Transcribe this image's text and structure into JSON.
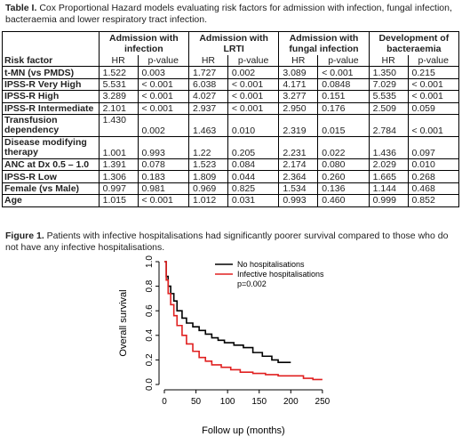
{
  "table_caption": {
    "label": "Table I.",
    "text": " Cox Proportional Hazard models evaluating risk factors for admission with infection, fungal infection, bacteraemia and lower respiratory tract infection."
  },
  "table": {
    "groups": [
      "Admission with infection",
      "Admission with LRTI",
      "Admission with fungal infection",
      "Development of bacteraemia"
    ],
    "risk_factor_header": "Risk factor",
    "hr_label": "HR",
    "p_label": "p-value",
    "rows": [
      {
        "factor": "t-MN (vs PMDS)",
        "v": [
          "1.522",
          "0.003",
          "1.727",
          "0.002",
          "3.089",
          "< 0.001",
          "1.350",
          "0.215"
        ]
      },
      {
        "factor": "IPSS-R Very High",
        "v": [
          "5.531",
          "< 0.001",
          "6.038",
          "< 0.001",
          "4.171",
          "0.0848",
          "7.029",
          "< 0.001"
        ]
      },
      {
        "factor": "IPSS-R High",
        "v": [
          "3.289",
          "< 0.001",
          "4.027",
          "< 0.001",
          "3.277",
          "0.151",
          "5.535",
          "< 0.001"
        ]
      },
      {
        "factor": "IPSS-R Intermediate",
        "v": [
          "2.101",
          "< 0.001",
          "2.937",
          "< 0.001",
          "2.950",
          "0.176",
          "2.509",
          "0.059"
        ]
      },
      {
        "factor": "Transfusion dependency",
        "v": [
          "1.430",
          "0.002",
          "1.463",
          "0.010",
          "2.319",
          "0.015",
          "2.784",
          "< 0.001"
        ]
      },
      {
        "factor": "Disease modifying therapy",
        "v": [
          "1.001",
          "0.993",
          "1.22",
          "0.205",
          "2.231",
          "0.022",
          "1.436",
          "0.097"
        ]
      },
      {
        "factor": "ANC at Dx 0.5 – 1.0",
        "v": [
          "1.391",
          "0.078",
          "1.523",
          "0.084",
          "2.174",
          "0.080",
          "2.029",
          "0.010"
        ]
      },
      {
        "factor": "IPSS-R Low",
        "v": [
          "1.306",
          "0.183",
          "1.809",
          "0.044",
          "2.364",
          "0.260",
          "1.665",
          "0.268"
        ]
      },
      {
        "factor": "Female (vs Male)",
        "v": [
          "0.997",
          "0.981",
          "0.969",
          "0.825",
          "1.534",
          "0.136",
          "1.144",
          "0.468"
        ]
      },
      {
        "factor": "Age",
        "v": [
          "1.015",
          "< 0.001",
          "1.012",
          "0.031",
          "0.993",
          "0.460",
          "0.999",
          "0.852"
        ]
      }
    ]
  },
  "figure_caption": {
    "label": "Figure 1.",
    "text": " Patients with infective hospitalisations had significantly poorer survival compared to those who do not have any infective hospitalisations."
  },
  "chart_data": {
    "type": "line",
    "xlabel": "Follow up (months)",
    "ylabel": "Overall survival",
    "xlim": [
      0,
      260
    ],
    "ylim": [
      0,
      1
    ],
    "xticks": [
      "0",
      "50",
      "100",
      "150",
      "200",
      "250"
    ],
    "yticks": [
      "0.0",
      "0.2",
      "0.4",
      "0.6",
      "0.8",
      "1.0"
    ],
    "annotation": "p=0.002",
    "legend_position": "top-right",
    "series": [
      {
        "name": "No hospitalisations",
        "color": "#000000",
        "x": [
          0,
          3,
          6,
          10,
          15,
          20,
          28,
          35,
          45,
          55,
          65,
          75,
          85,
          95,
          110,
          125,
          140,
          155,
          170,
          180,
          200
        ],
        "y": [
          1.0,
          0.88,
          0.8,
          0.74,
          0.68,
          0.6,
          0.54,
          0.5,
          0.47,
          0.44,
          0.41,
          0.38,
          0.36,
          0.34,
          0.32,
          0.3,
          0.26,
          0.23,
          0.2,
          0.18,
          0.18
        ]
      },
      {
        "name": "Infective hospitalisations",
        "color": "#e02020",
        "x": [
          0,
          3,
          6,
          10,
          15,
          20,
          28,
          35,
          45,
          55,
          65,
          75,
          90,
          105,
          120,
          140,
          160,
          180,
          200,
          220,
          235,
          250
        ],
        "y": [
          1.0,
          0.85,
          0.74,
          0.65,
          0.56,
          0.48,
          0.4,
          0.33,
          0.27,
          0.22,
          0.19,
          0.16,
          0.14,
          0.12,
          0.1,
          0.09,
          0.08,
          0.07,
          0.07,
          0.05,
          0.04,
          0.04
        ]
      }
    ]
  }
}
